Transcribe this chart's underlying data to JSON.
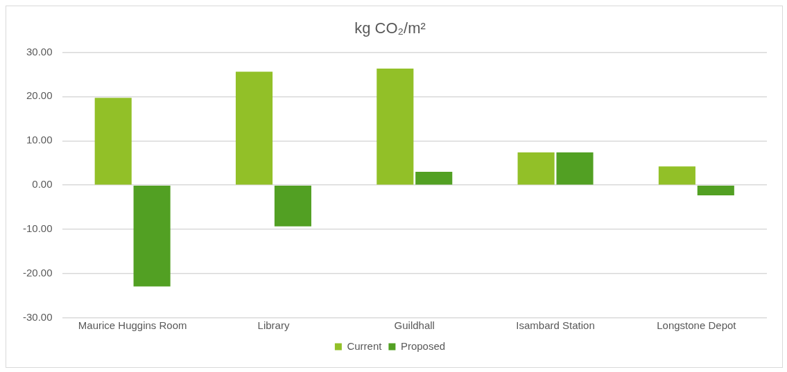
{
  "chart_data": {
    "type": "bar",
    "title": "kg CO₂/m²",
    "categories": [
      "Maurice Huggins Room",
      "Library",
      "Guildhall",
      "Isambard Station",
      "Longstone Depot"
    ],
    "series": [
      {
        "name": "Current",
        "color": "#92c028",
        "values": [
          19.7,
          25.6,
          26.3,
          7.4,
          4.2
        ]
      },
      {
        "name": "Proposed",
        "color": "#52a023",
        "values": [
          -22.9,
          -9.3,
          3.0,
          7.4,
          -2.3
        ]
      }
    ],
    "ylim": [
      -30,
      30
    ],
    "yticks": [
      {
        "value": -30,
        "label": "-30.00"
      },
      {
        "value": -20,
        "label": "-20.00"
      },
      {
        "value": -10,
        "label": "-10.00"
      },
      {
        "value": 0,
        "label": "0.00"
      },
      {
        "value": 10,
        "label": "10.00"
      },
      {
        "value": 20,
        "label": "20.00"
      },
      {
        "value": 30,
        "label": "30.00"
      }
    ],
    "grid": "y",
    "legend": "bottom"
  }
}
